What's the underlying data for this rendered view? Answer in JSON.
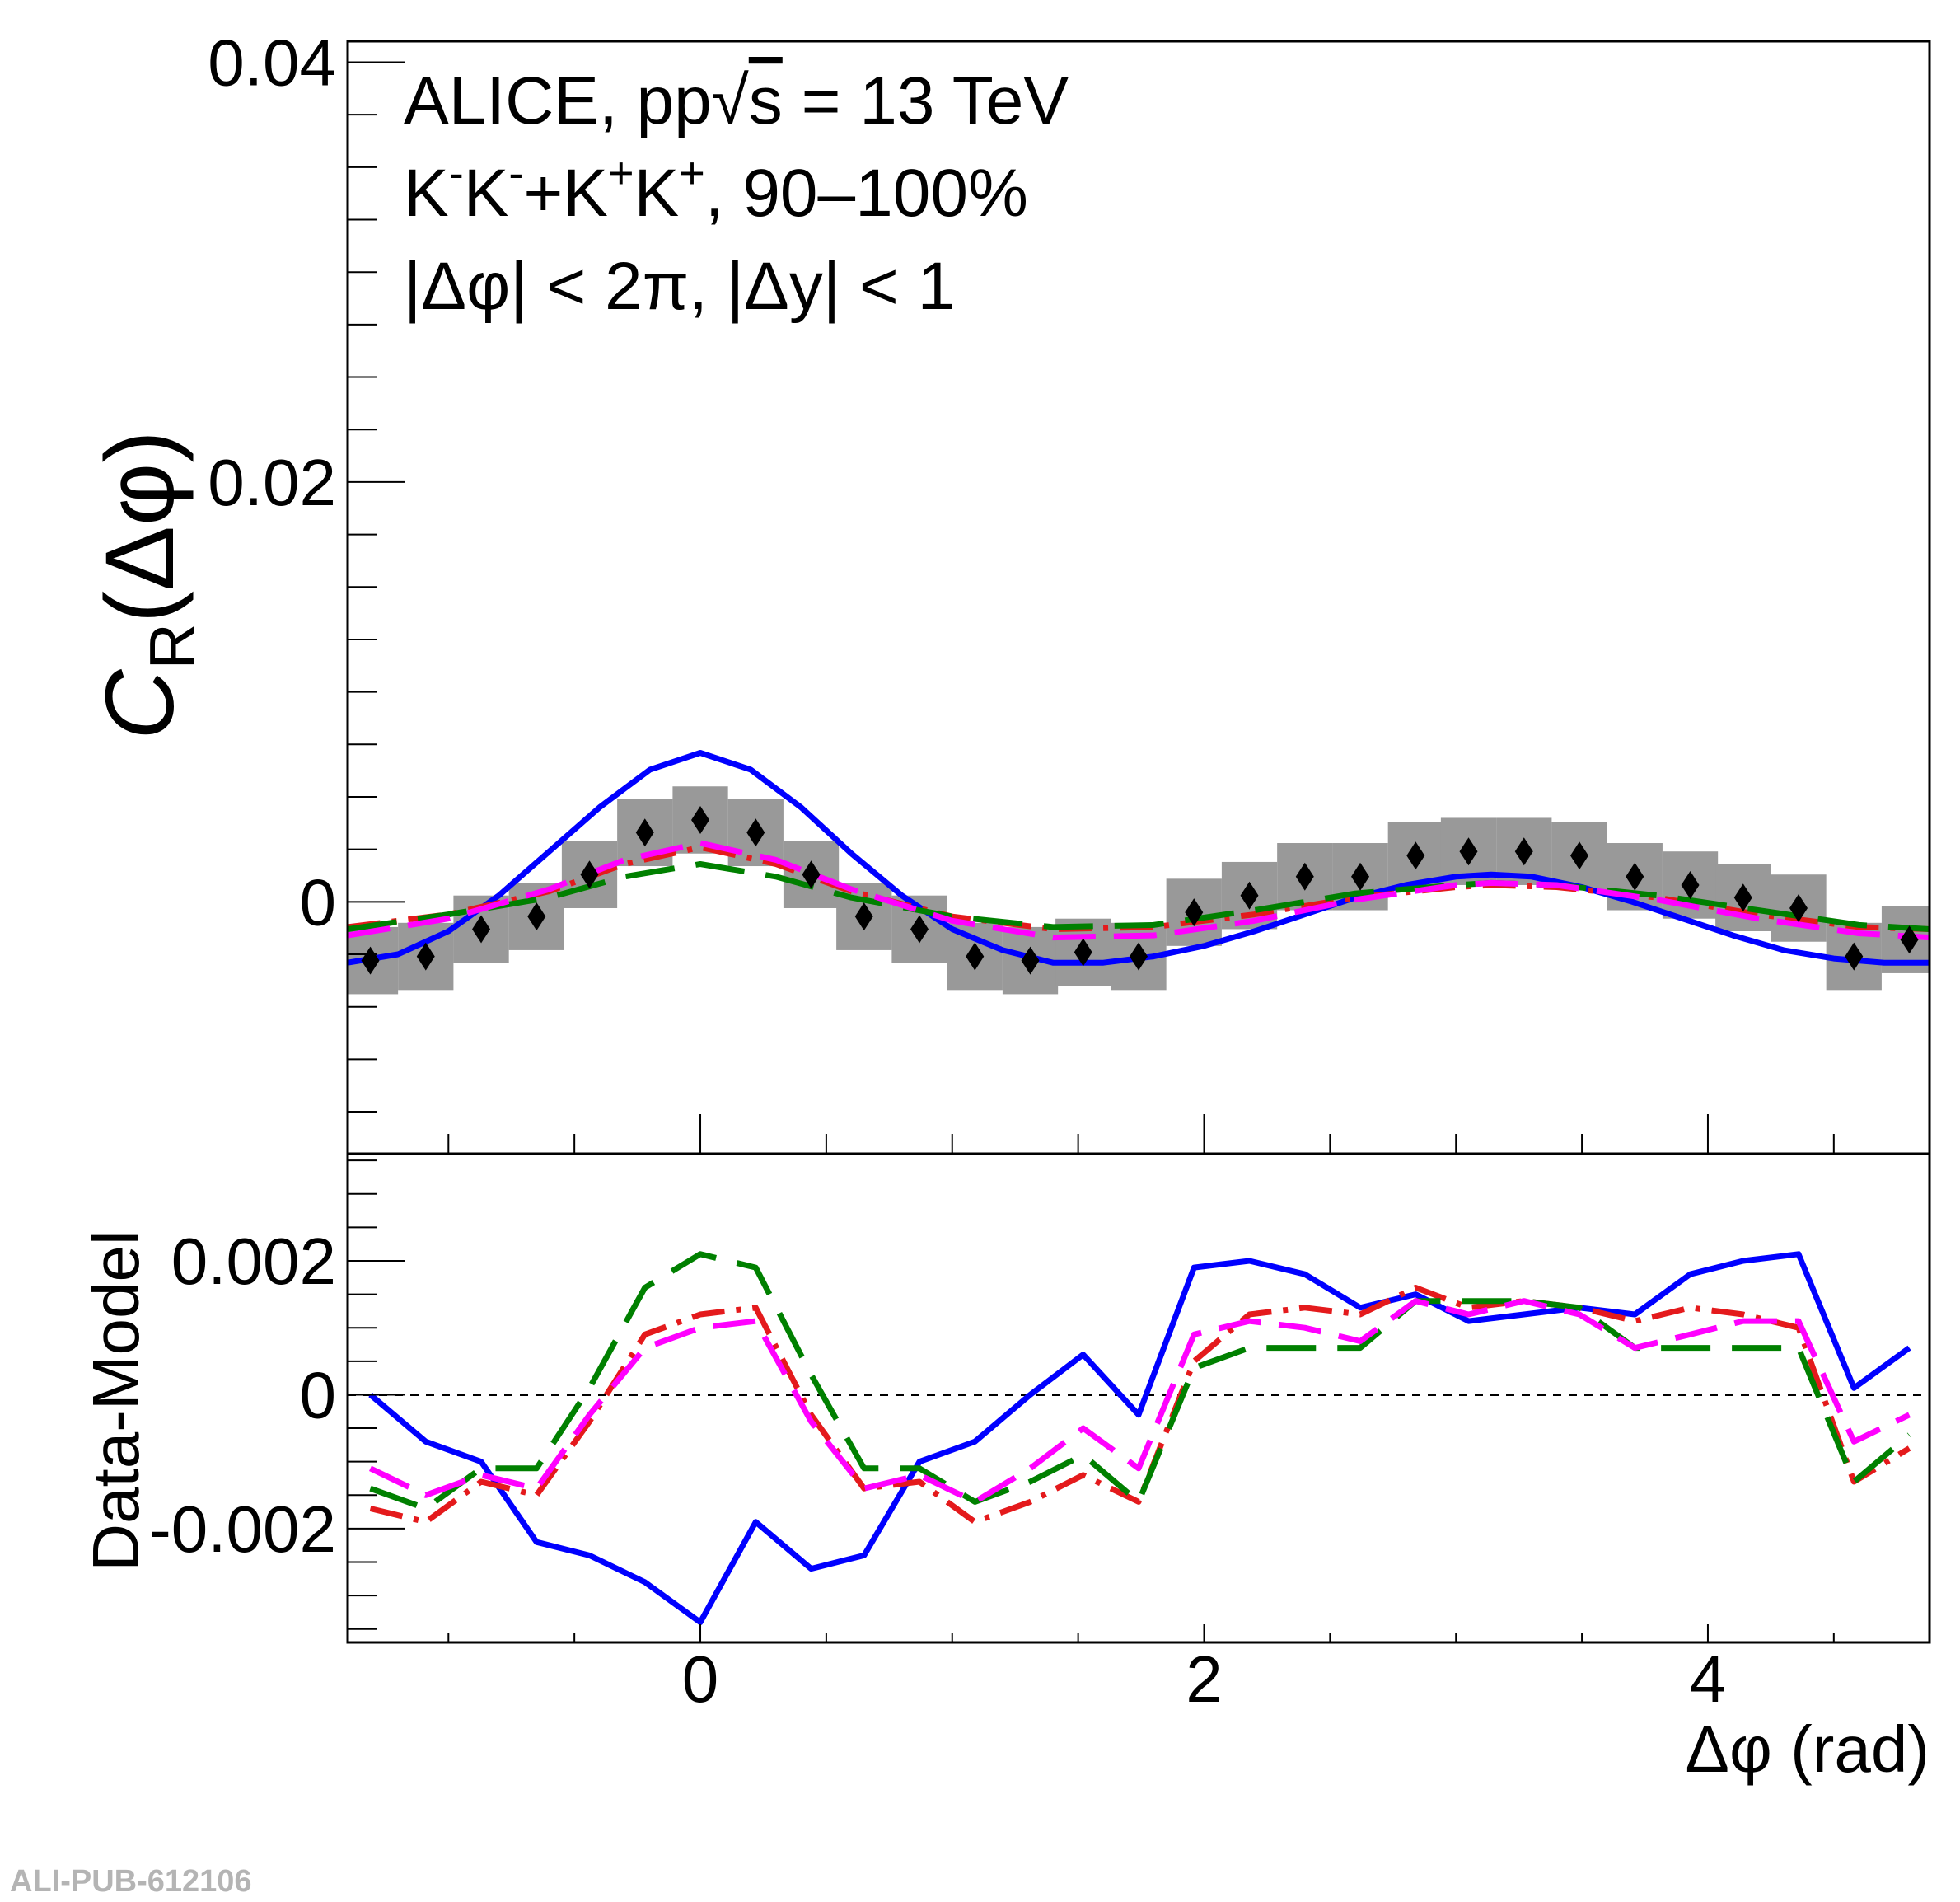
{
  "footer_id": "ALI-PUB-612106",
  "chart_data": [
    {
      "type": "line",
      "panel": "top",
      "ylabel_main": "C",
      "ylabel_sub": "R",
      "ylabel_arg": "(Δφ)",
      "ylim": [
        -0.012,
        0.041
      ],
      "xlim": [
        -1.4,
        4.88
      ],
      "ytick_labels": [
        "0.04",
        "0.02",
        "0"
      ],
      "annotations": [
        {
          "parts": [
            {
              "t": "ALICE, pp"
            },
            {
              "t": "√",
              "k": "sqrt"
            },
            {
              "t": "s",
              "k": "over"
            },
            {
              "t": " = 13 TeV"
            }
          ]
        },
        {
          "parts": [
            {
              "t": "K"
            },
            {
              "t": "-",
              "k": "sup"
            },
            {
              "t": "K"
            },
            {
              "t": "-",
              "k": "sup"
            },
            {
              "t": "+K"
            },
            {
              "t": "+",
              "k": "sup"
            },
            {
              "t": "K"
            },
            {
              "t": "+",
              "k": "sup"
            },
            {
              "t": ", 90–100%"
            }
          ]
        },
        {
          "parts": [
            {
              "t": "|Δφ| < 2π, |Δy| < 1"
            }
          ]
        }
      ],
      "data_points": {
        "x": [
          -1.31,
          -1.09,
          -0.87,
          -0.65,
          -0.44,
          -0.22,
          0.0,
          0.22,
          0.44,
          0.65,
          0.87,
          1.09,
          1.31,
          1.52,
          1.74,
          1.96,
          2.18,
          2.4,
          2.62,
          2.84,
          3.05,
          3.27,
          3.49,
          3.71,
          3.93,
          4.14,
          4.36,
          4.58,
          4.8
        ],
        "y": [
          -0.0028,
          -0.0026,
          -0.0013,
          -0.0007,
          0.0013,
          0.0033,
          0.0039,
          0.0033,
          0.0013,
          -0.0007,
          -0.0013,
          -0.0026,
          -0.0028,
          -0.0024,
          -0.0026,
          -0.0005,
          0.0003,
          0.0012,
          0.0012,
          0.0022,
          0.0024,
          0.0024,
          0.0022,
          0.0012,
          0.0008,
          0.0002,
          -0.0003,
          -0.0026,
          -0.0018
        ],
        "syst": [
          0.0016,
          0.0016,
          0.0016,
          0.0016,
          0.0016,
          0.0016,
          0.0016,
          0.0016,
          0.0016,
          0.0016,
          0.0016,
          0.0016,
          0.0016,
          0.0016,
          0.0016,
          0.0016,
          0.0016,
          0.0016,
          0.0016,
          0.0016,
          0.0016,
          0.0016,
          0.0016,
          0.0016,
          0.0016,
          0.0016,
          0.0016,
          0.0016,
          0.0016
        ]
      },
      "series": [
        {
          "color": "#0000ff",
          "style": "solid",
          "x": [
            -1.4,
            -1.2,
            -1.0,
            -0.8,
            -0.6,
            -0.4,
            -0.2,
            0.0,
            0.2,
            0.4,
            0.6,
            0.8,
            1.0,
            1.2,
            1.4,
            1.6,
            1.8,
            2.0,
            2.2,
            2.4,
            2.6,
            2.8,
            3.0,
            3.14,
            3.3,
            3.5,
            3.7,
            3.9,
            4.1,
            4.3,
            4.5,
            4.7,
            4.88
          ],
          "y": [
            -0.0029,
            -0.0025,
            -0.0014,
            0.0003,
            0.0024,
            0.0045,
            0.0063,
            0.0071,
            0.0063,
            0.0045,
            0.0023,
            0.0003,
            -0.0013,
            -0.0023,
            -0.0029,
            -0.0029,
            -0.0026,
            -0.0021,
            -0.0014,
            -0.0006,
            0.0002,
            0.0008,
            0.0012,
            0.0013,
            0.0012,
            0.0007,
            0.0,
            -0.0008,
            -0.0016,
            -0.0023,
            -0.0027,
            -0.0029,
            -0.0029
          ]
        },
        {
          "color": "#e41a1c",
          "style": "dashdot",
          "x": [
            -1.4,
            -1.0,
            -0.6,
            -0.3,
            0.0,
            0.3,
            0.6,
            1.0,
            1.4,
            1.8,
            2.2,
            2.6,
            3.0,
            3.14,
            3.4,
            3.8,
            4.2,
            4.6,
            4.88
          ],
          "y": [
            -0.0012,
            -0.0006,
            0.0005,
            0.0018,
            0.0026,
            0.0018,
            0.0005,
            -0.0007,
            -0.0013,
            -0.0012,
            -0.0006,
            0.0002,
            0.0007,
            0.0008,
            0.0007,
            0.0002,
            -0.0006,
            -0.0012,
            -0.0013
          ]
        },
        {
          "color": "#008000",
          "style": "longdash",
          "x": [
            -1.4,
            -1.0,
            -0.6,
            -0.3,
            0.0,
            0.3,
            0.6,
            1.0,
            1.4,
            1.8,
            2.2,
            2.6,
            3.0,
            3.14,
            3.4,
            3.8,
            4.2,
            4.6,
            4.88
          ],
          "y": [
            -0.0013,
            -0.0006,
            0.0002,
            0.0012,
            0.0018,
            0.0012,
            0.0002,
            -0.0007,
            -0.0012,
            -0.0011,
            -0.0004,
            0.0004,
            0.0008,
            0.0009,
            0.0008,
            0.0003,
            -0.0004,
            -0.0011,
            -0.0013
          ]
        },
        {
          "color": "#ff00ff",
          "style": "dashed",
          "x": [
            -1.4,
            -1.0,
            -0.6,
            -0.3,
            0.0,
            0.3,
            0.6,
            1.0,
            1.4,
            1.8,
            2.2,
            2.6,
            3.0,
            3.14,
            3.4,
            3.8,
            4.2,
            4.6,
            4.88
          ],
          "y": [
            -0.0016,
            -0.0008,
            0.0006,
            0.002,
            0.0028,
            0.002,
            0.0006,
            -0.0009,
            -0.0017,
            -0.0016,
            -0.0009,
            0.0001,
            0.0008,
            0.0009,
            0.0008,
            0.0001,
            -0.0008,
            -0.0015,
            -0.0017
          ]
        }
      ]
    },
    {
      "type": "line",
      "panel": "bottom",
      "xlabel": "Δφ (rad)",
      "ylabel": "Data-Model",
      "ylim": [
        -0.0037,
        0.0036
      ],
      "xlim": [
        -1.4,
        4.88
      ],
      "ytick_labels": [
        "0.002",
        "0",
        "-0.002"
      ],
      "xtick_labels": [
        "0",
        "2",
        "4"
      ],
      "series": [
        {
          "color": "#0000ff",
          "style": "solid",
          "x": [
            -1.31,
            -1.09,
            -0.87,
            -0.65,
            -0.44,
            -0.22,
            0.0,
            0.22,
            0.44,
            0.65,
            0.87,
            1.09,
            1.31,
            1.52,
            1.74,
            1.96,
            2.18,
            2.4,
            2.62,
            2.84,
            3.05,
            3.27,
            3.49,
            3.71,
            3.93,
            4.14,
            4.36,
            4.58,
            4.8
          ],
          "y": [
            0.0,
            -0.0007,
            -0.001,
            -0.0022,
            -0.0024,
            -0.0028,
            -0.0034,
            -0.0019,
            -0.0026,
            -0.0024,
            -0.001,
            -0.0007,
            0.0,
            0.0006,
            -0.0003,
            0.0019,
            0.002,
            0.0018,
            0.0013,
            0.0015,
            0.0011,
            0.0012,
            0.0013,
            0.0012,
            0.0018,
            0.002,
            0.0021,
            0.0001,
            0.0007
          ]
        },
        {
          "color": "#e41a1c",
          "style": "dashdot",
          "x": [
            -1.31,
            -1.09,
            -0.87,
            -0.65,
            -0.44,
            -0.22,
            0.0,
            0.22,
            0.44,
            0.65,
            0.87,
            1.09,
            1.31,
            1.52,
            1.74,
            1.96,
            2.18,
            2.4,
            2.62,
            2.84,
            3.05,
            3.27,
            3.49,
            3.71,
            3.93,
            4.14,
            4.36,
            4.58,
            4.8
          ],
          "y": [
            -0.0017,
            -0.0019,
            -0.0013,
            -0.0015,
            -0.0004,
            0.0009,
            0.0012,
            0.0013,
            -0.0003,
            -0.0014,
            -0.0013,
            -0.0019,
            -0.0016,
            -0.0012,
            -0.0016,
            0.0005,
            0.0012,
            0.0013,
            0.0012,
            0.0016,
            0.0013,
            0.0014,
            0.0013,
            0.0011,
            0.0013,
            0.0012,
            0.001,
            -0.0013,
            -0.0008
          ]
        },
        {
          "color": "#008000",
          "style": "longdash",
          "x": [
            -1.31,
            -1.09,
            -0.87,
            -0.65,
            -0.44,
            -0.22,
            0.0,
            0.22,
            0.44,
            0.65,
            0.87,
            1.09,
            1.31,
            1.52,
            1.74,
            1.96,
            2.18,
            2.4,
            2.62,
            2.84,
            3.05,
            3.27,
            3.49,
            3.71,
            3.93,
            4.14,
            4.36,
            4.58,
            4.8
          ],
          "y": [
            -0.0014,
            -0.0017,
            -0.0011,
            -0.0011,
            0.0001,
            0.0016,
            0.0021,
            0.0019,
            0.0003,
            -0.0011,
            -0.0011,
            -0.0016,
            -0.0013,
            -0.0009,
            -0.0016,
            0.0004,
            0.0007,
            0.0007,
            0.0007,
            0.0014,
            0.0014,
            0.0014,
            0.0013,
            0.0007,
            0.0007,
            0.0007,
            0.0007,
            -0.0013,
            -0.0006
          ]
        },
        {
          "color": "#ff00ff",
          "style": "dashed",
          "x": [
            -1.31,
            -1.09,
            -0.87,
            -0.65,
            -0.44,
            -0.22,
            0.0,
            0.22,
            0.44,
            0.65,
            0.87,
            1.09,
            1.31,
            1.52,
            1.74,
            1.96,
            2.18,
            2.4,
            2.62,
            2.84,
            3.05,
            3.27,
            3.49,
            3.71,
            3.93,
            4.14,
            4.36,
            4.58,
            4.8
          ],
          "y": [
            -0.0011,
            -0.0015,
            -0.0012,
            -0.0014,
            -0.0003,
            0.0007,
            0.001,
            0.0011,
            -0.0004,
            -0.0014,
            -0.0012,
            -0.0016,
            -0.0011,
            -0.0005,
            -0.0011,
            0.0009,
            0.0011,
            0.001,
            0.0008,
            0.0014,
            0.0012,
            0.0014,
            0.0012,
            0.0007,
            0.0009,
            0.0011,
            0.0011,
            -0.0007,
            -0.0003
          ]
        }
      ]
    }
  ]
}
